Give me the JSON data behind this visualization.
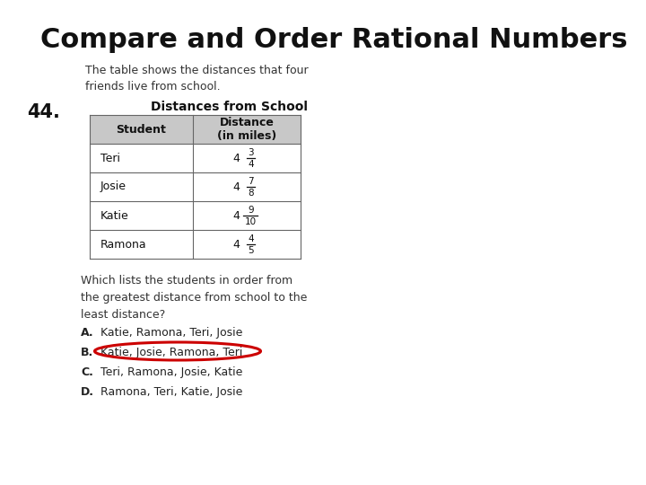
{
  "title": "Compare and Order Rational Numbers",
  "problem_number": "44.",
  "intro_text": "The table shows the distances that four\nfriends live from school.",
  "table_title": "Distances from School",
  "question_text": "Which lists the students in order from\nthe greatest distance from school to the\nleast distance?",
  "choice_A": "Katie, Ramona, Teri, Josie",
  "choice_B": "Katie, Josie, Ramona, Teri",
  "choice_C": "Teri, Ramona, Josie, Katie",
  "choice_D": "Ramona, Teri, Katie, Josie",
  "students": [
    "Teri",
    "Josie",
    "Katie",
    "Ramona"
  ],
  "frac_whole": [
    "4",
    "4",
    "4",
    "4"
  ],
  "frac_num": [
    "3",
    "7",
    "9",
    "4"
  ],
  "frac_den": [
    "4",
    "8",
    "10",
    "5"
  ],
  "bg_color": "#ffffff",
  "title_fontsize": 22,
  "body_fontsize": 9,
  "table_header_bg": "#c8c8c8",
  "table_border_color": "#666666",
  "circle_color": "#cc0000"
}
